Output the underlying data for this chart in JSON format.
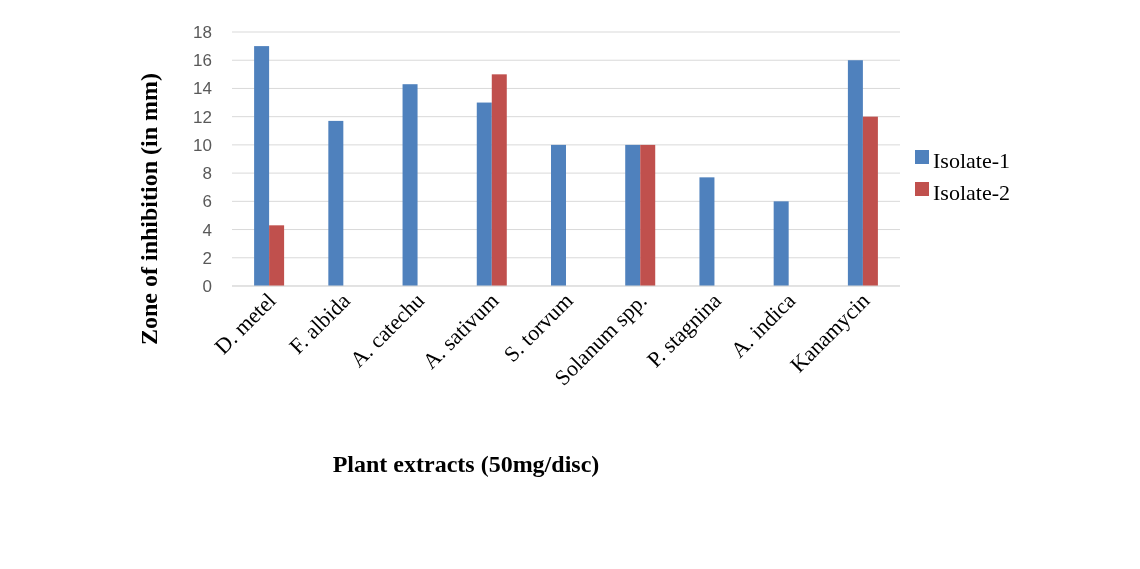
{
  "chart_data": {
    "type": "bar",
    "xlabel": "Plant extracts (50mg/disc)",
    "ylabel": "Zone of inhibition (in mm)",
    "categories": [
      "D. metel",
      "F. albida",
      "A. catechu",
      "A. sativum",
      "S. torvum",
      "Solanum spp.",
      "P. stagnina",
      "A. indica",
      "Kanamycin"
    ],
    "series": [
      {
        "name": "Isolate-1",
        "color": "#4f81bd",
        "values": [
          17,
          11.7,
          14.3,
          13,
          10,
          10,
          7.7,
          6,
          16
        ]
      },
      {
        "name": "Isolate-2",
        "color": "#c0504d",
        "values": [
          4.3,
          0,
          0,
          15,
          0,
          10,
          0,
          0,
          12
        ]
      }
    ],
    "ylim": [
      0,
      18
    ],
    "yticks": [
      0,
      2,
      4,
      6,
      8,
      10,
      12,
      14,
      16,
      18
    ],
    "grid": "y",
    "legend": "right"
  }
}
